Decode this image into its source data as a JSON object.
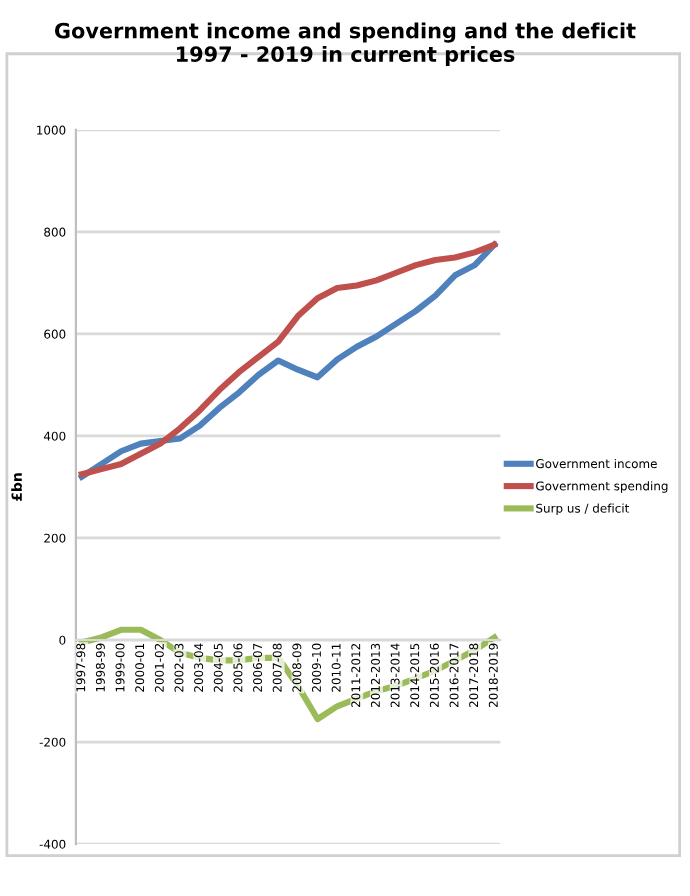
{
  "chart_data": {
    "type": "line",
    "title": "Government income and spending and the deficit\n1997 - 2019 in current prices",
    "ylabel": "£bn",
    "categories": [
      "1997-98",
      "1998-99",
      "1999-00",
      "2000-01",
      "2001-02",
      "2002-03",
      "2003-04",
      "2004-05",
      "2005-06",
      "2006-07",
      "2007-08",
      "2008-09",
      "2009-10",
      "2010-11",
      "2011-2012",
      "2012-2013",
      "2013-2014",
      "2014-2015",
      "2015-2016",
      "2016-2017",
      "2017-2018",
      "2018-2019"
    ],
    "series": [
      {
        "name": "Government income",
        "color": "#4f81bd",
        "values": [
          320,
          345,
          370,
          385,
          390,
          395,
          420,
          455,
          485,
          520,
          548,
          530,
          515,
          550,
          575,
          595,
          620,
          645,
          675,
          715,
          735,
          775
        ]
      },
      {
        "name": "Government spending",
        "color": "#c0504d",
        "values": [
          325,
          335,
          345,
          365,
          385,
          415,
          450,
          490,
          525,
          555,
          585,
          635,
          670,
          690,
          695,
          705,
          720,
          735,
          745,
          750,
          760,
          775
        ]
      },
      {
        "name": "Surp us / deficit",
        "color": "#9bbb59",
        "values": [
          -5,
          5,
          20,
          20,
          0,
          -25,
          -35,
          -40,
          -40,
          -35,
          -35,
          -90,
          -155,
          -130,
          -115,
          -100,
          -90,
          -75,
          -60,
          -40,
          -20,
          5
        ]
      }
    ],
    "ylim": [
      -400,
      1000
    ],
    "yticks": [
      -400,
      -200,
      0,
      200,
      400,
      600,
      800,
      1000
    ],
    "grid": "y",
    "legend": "right",
    "marker": "none",
    "line_style": "solid"
  }
}
